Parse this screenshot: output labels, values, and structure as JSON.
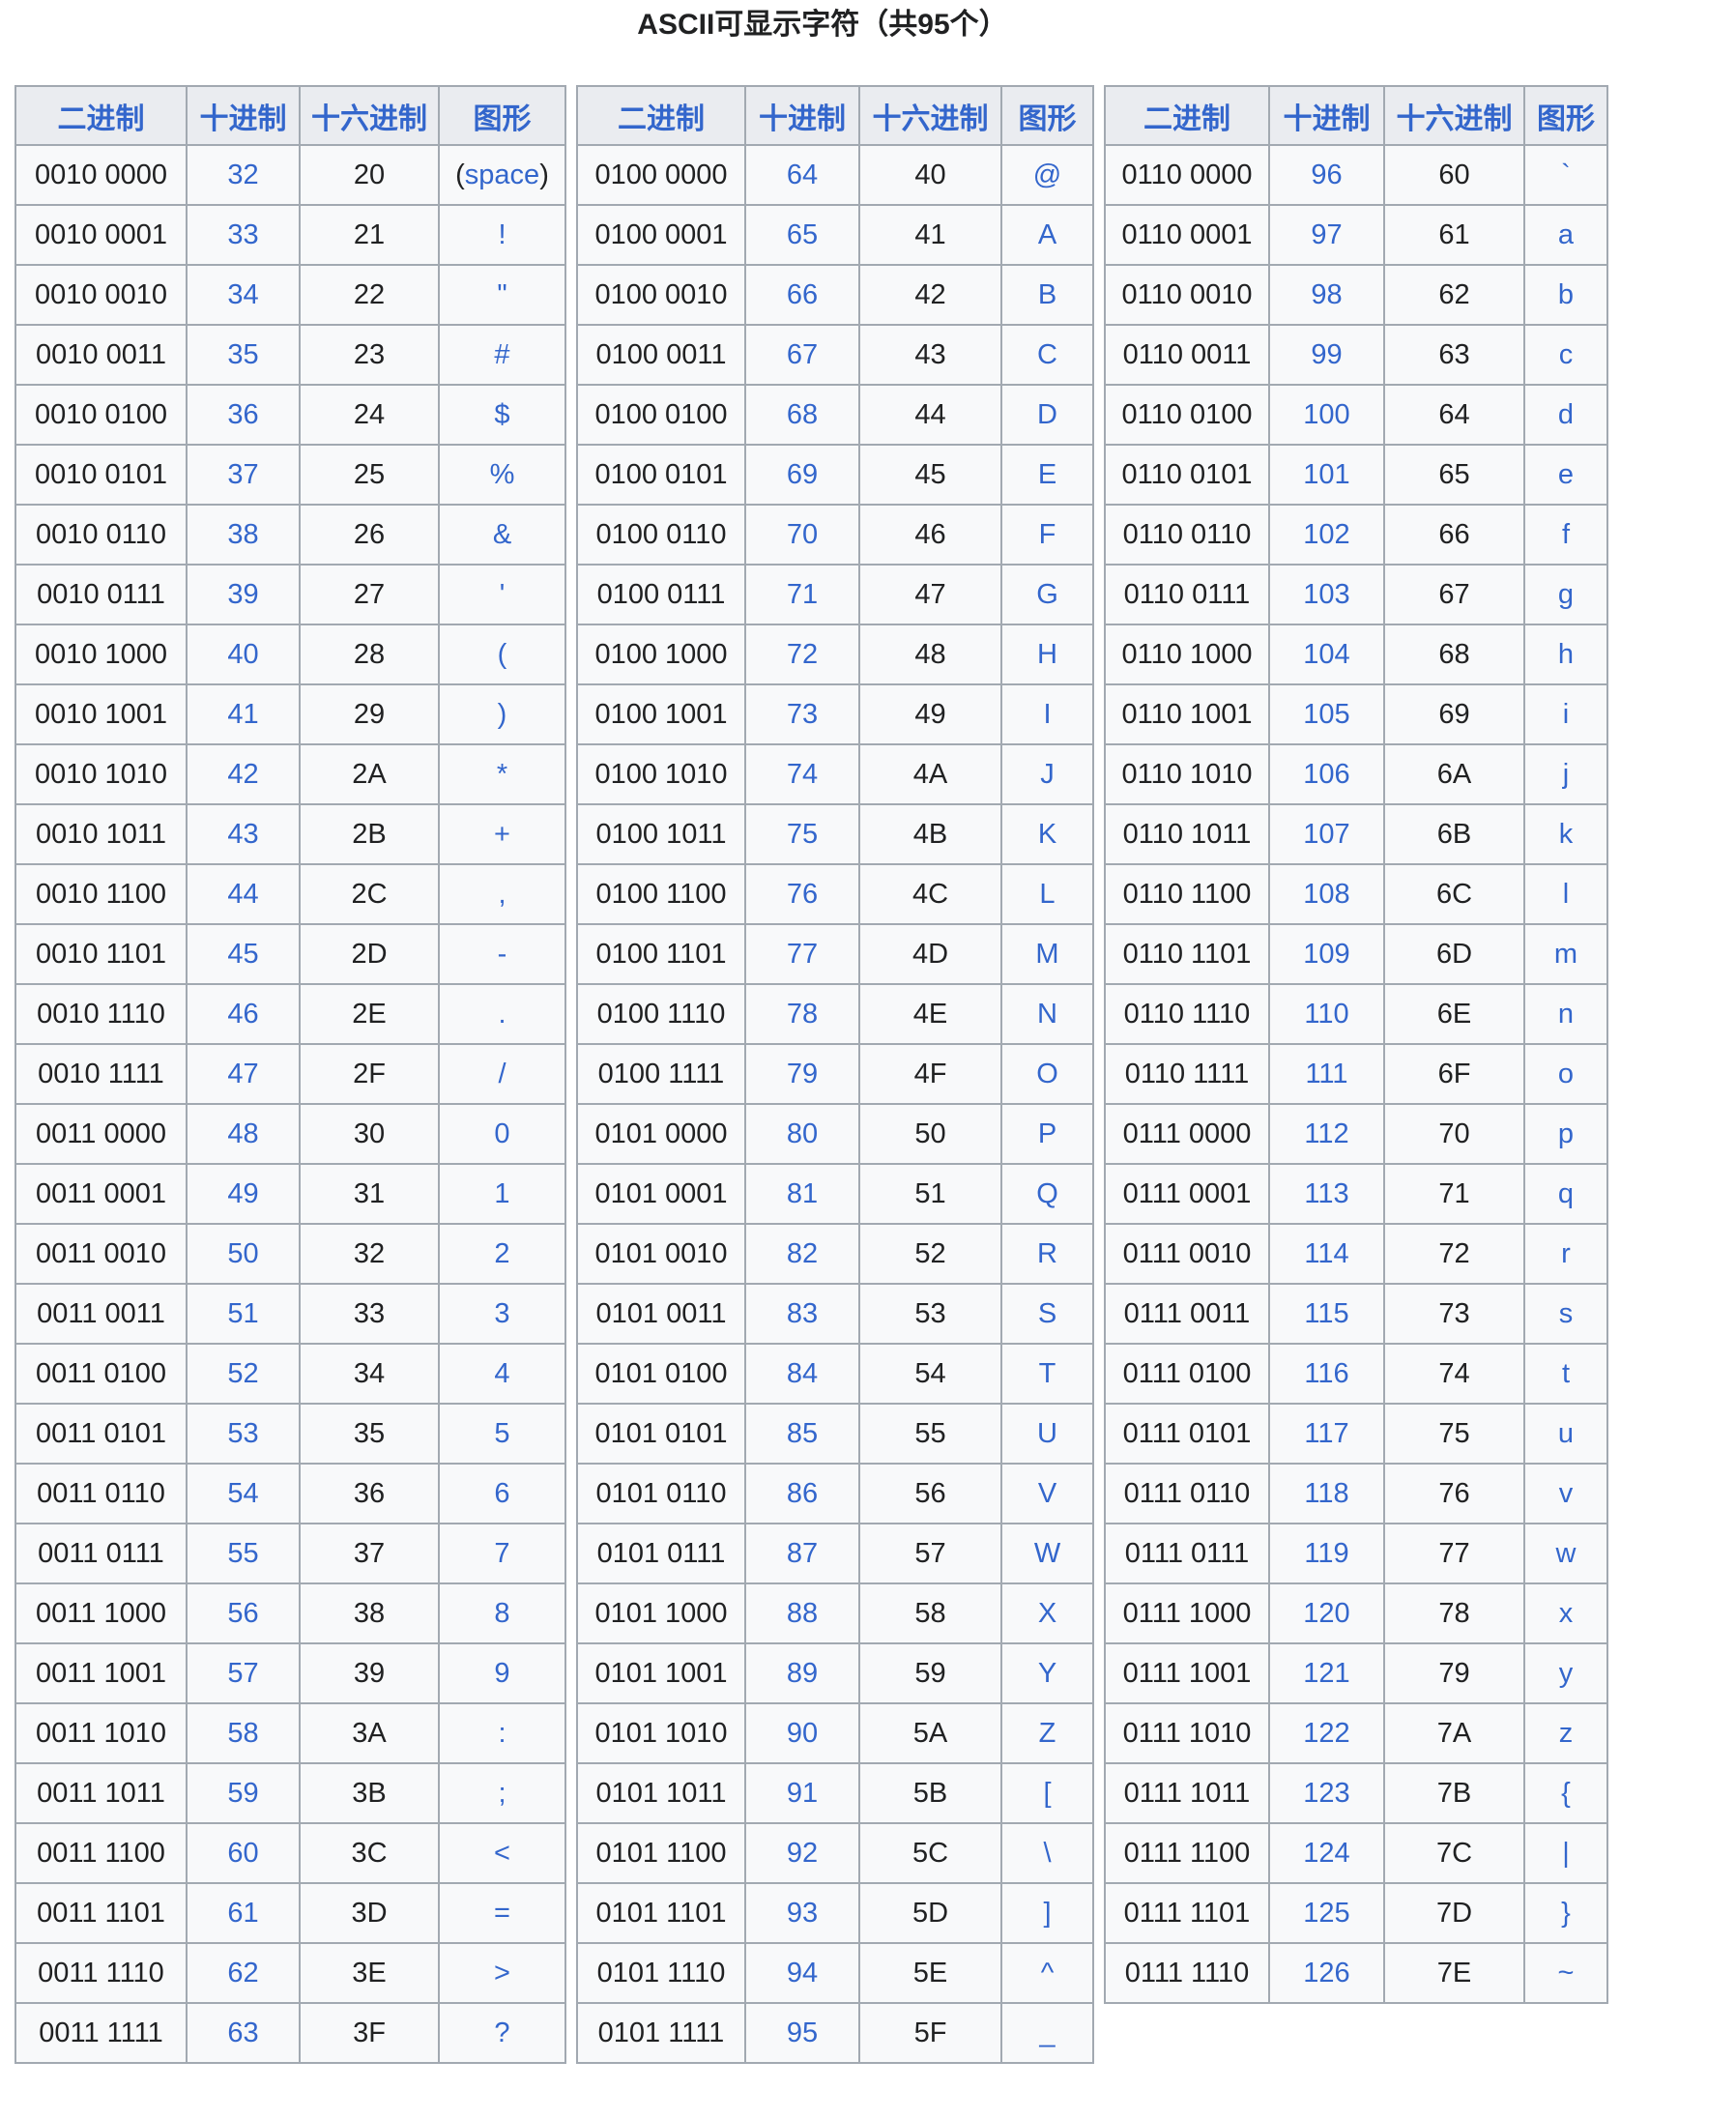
{
  "page": {
    "title": "ASCII可显示字符（共95个）",
    "colors": {
      "link_blue": "#3366cc",
      "text_black": "#202122",
      "table_border": "#a2a9b1",
      "header_bg": "#eaecf0",
      "cell_bg": "#f8f9fa",
      "page_bg": "#ffffff"
    }
  },
  "column_headers": [
    "二进制",
    "十进制",
    "十六进制",
    "图形"
  ],
  "space_glyph": {
    "prefix": "(",
    "link_text": "space",
    "suffix": ")"
  },
  "tables": [
    {
      "name": "ascii-32-63",
      "rows": [
        [
          "0010 0000",
          "32",
          "20",
          "(space)"
        ],
        [
          "0010 0001",
          "33",
          "21",
          "!"
        ],
        [
          "0010 0010",
          "34",
          "22",
          "\""
        ],
        [
          "0010 0011",
          "35",
          "23",
          "#"
        ],
        [
          "0010 0100",
          "36",
          "24",
          "$"
        ],
        [
          "0010 0101",
          "37",
          "25",
          "%"
        ],
        [
          "0010 0110",
          "38",
          "26",
          "&"
        ],
        [
          "0010 0111",
          "39",
          "27",
          "'"
        ],
        [
          "0010 1000",
          "40",
          "28",
          "("
        ],
        [
          "0010 1001",
          "41",
          "29",
          ")"
        ],
        [
          "0010 1010",
          "42",
          "2A",
          "*"
        ],
        [
          "0010 1011",
          "43",
          "2B",
          "+"
        ],
        [
          "0010 1100",
          "44",
          "2C",
          ","
        ],
        [
          "0010 1101",
          "45",
          "2D",
          "-"
        ],
        [
          "0010 1110",
          "46",
          "2E",
          "."
        ],
        [
          "0010 1111",
          "47",
          "2F",
          "/"
        ],
        [
          "0011 0000",
          "48",
          "30",
          "0"
        ],
        [
          "0011 0001",
          "49",
          "31",
          "1"
        ],
        [
          "0011 0010",
          "50",
          "32",
          "2"
        ],
        [
          "0011 0011",
          "51",
          "33",
          "3"
        ],
        [
          "0011 0100",
          "52",
          "34",
          "4"
        ],
        [
          "0011 0101",
          "53",
          "35",
          "5"
        ],
        [
          "0011 0110",
          "54",
          "36",
          "6"
        ],
        [
          "0011 0111",
          "55",
          "37",
          "7"
        ],
        [
          "0011 1000",
          "56",
          "38",
          "8"
        ],
        [
          "0011 1001",
          "57",
          "39",
          "9"
        ],
        [
          "0011 1010",
          "58",
          "3A",
          ":"
        ],
        [
          "0011 1011",
          "59",
          "3B",
          ";"
        ],
        [
          "0011 1100",
          "60",
          "3C",
          "<"
        ],
        [
          "0011 1101",
          "61",
          "3D",
          "="
        ],
        [
          "0011 1110",
          "62",
          "3E",
          ">"
        ],
        [
          "0011 1111",
          "63",
          "3F",
          "?"
        ]
      ]
    },
    {
      "name": "ascii-64-95",
      "rows": [
        [
          "0100 0000",
          "64",
          "40",
          "@"
        ],
        [
          "0100 0001",
          "65",
          "41",
          "A"
        ],
        [
          "0100 0010",
          "66",
          "42",
          "B"
        ],
        [
          "0100 0011",
          "67",
          "43",
          "C"
        ],
        [
          "0100 0100",
          "68",
          "44",
          "D"
        ],
        [
          "0100 0101",
          "69",
          "45",
          "E"
        ],
        [
          "0100 0110",
          "70",
          "46",
          "F"
        ],
        [
          "0100 0111",
          "71",
          "47",
          "G"
        ],
        [
          "0100 1000",
          "72",
          "48",
          "H"
        ],
        [
          "0100 1001",
          "73",
          "49",
          "I"
        ],
        [
          "0100 1010",
          "74",
          "4A",
          "J"
        ],
        [
          "0100 1011",
          "75",
          "4B",
          "K"
        ],
        [
          "0100 1100",
          "76",
          "4C",
          "L"
        ],
        [
          "0100 1101",
          "77",
          "4D",
          "M"
        ],
        [
          "0100 1110",
          "78",
          "4E",
          "N"
        ],
        [
          "0100 1111",
          "79",
          "4F",
          "O"
        ],
        [
          "0101 0000",
          "80",
          "50",
          "P"
        ],
        [
          "0101 0001",
          "81",
          "51",
          "Q"
        ],
        [
          "0101 0010",
          "82",
          "52",
          "R"
        ],
        [
          "0101 0011",
          "83",
          "53",
          "S"
        ],
        [
          "0101 0100",
          "84",
          "54",
          "T"
        ],
        [
          "0101 0101",
          "85",
          "55",
          "U"
        ],
        [
          "0101 0110",
          "86",
          "56",
          "V"
        ],
        [
          "0101 0111",
          "87",
          "57",
          "W"
        ],
        [
          "0101 1000",
          "88",
          "58",
          "X"
        ],
        [
          "0101 1001",
          "89",
          "59",
          "Y"
        ],
        [
          "0101 1010",
          "90",
          "5A",
          "Z"
        ],
        [
          "0101 1011",
          "91",
          "5B",
          "["
        ],
        [
          "0101 1100",
          "92",
          "5C",
          "\\"
        ],
        [
          "0101 1101",
          "93",
          "5D",
          "]"
        ],
        [
          "0101 1110",
          "94",
          "5E",
          "^"
        ],
        [
          "0101 1111",
          "95",
          "5F",
          "_"
        ]
      ]
    },
    {
      "name": "ascii-96-126",
      "rows": [
        [
          "0110 0000",
          "96",
          "60",
          "`"
        ],
        [
          "0110 0001",
          "97",
          "61",
          "a"
        ],
        [
          "0110 0010",
          "98",
          "62",
          "b"
        ],
        [
          "0110 0011",
          "99",
          "63",
          "c"
        ],
        [
          "0110 0100",
          "100",
          "64",
          "d"
        ],
        [
          "0110 0101",
          "101",
          "65",
          "e"
        ],
        [
          "0110 0110",
          "102",
          "66",
          "f"
        ],
        [
          "0110 0111",
          "103",
          "67",
          "g"
        ],
        [
          "0110 1000",
          "104",
          "68",
          "h"
        ],
        [
          "0110 1001",
          "105",
          "69",
          "i"
        ],
        [
          "0110 1010",
          "106",
          "6A",
          "j"
        ],
        [
          "0110 1011",
          "107",
          "6B",
          "k"
        ],
        [
          "0110 1100",
          "108",
          "6C",
          "l"
        ],
        [
          "0110 1101",
          "109",
          "6D",
          "m"
        ],
        [
          "0110 1110",
          "110",
          "6E",
          "n"
        ],
        [
          "0110 1111",
          "111",
          "6F",
          "o"
        ],
        [
          "0111 0000",
          "112",
          "70",
          "p"
        ],
        [
          "0111 0001",
          "113",
          "71",
          "q"
        ],
        [
          "0111 0010",
          "114",
          "72",
          "r"
        ],
        [
          "0111 0011",
          "115",
          "73",
          "s"
        ],
        [
          "0111 0100",
          "116",
          "74",
          "t"
        ],
        [
          "0111 0101",
          "117",
          "75",
          "u"
        ],
        [
          "0111 0110",
          "118",
          "76",
          "v"
        ],
        [
          "0111 0111",
          "119",
          "77",
          "w"
        ],
        [
          "0111 1000",
          "120",
          "78",
          "x"
        ],
        [
          "0111 1001",
          "121",
          "79",
          "y"
        ],
        [
          "0111 1010",
          "122",
          "7A",
          "z"
        ],
        [
          "0111 1011",
          "123",
          "7B",
          "{"
        ],
        [
          "0111 1100",
          "124",
          "7C",
          "|"
        ],
        [
          "0111 1101",
          "125",
          "7D",
          "}"
        ],
        [
          "0111 1110",
          "126",
          "7E",
          "~"
        ]
      ]
    }
  ]
}
